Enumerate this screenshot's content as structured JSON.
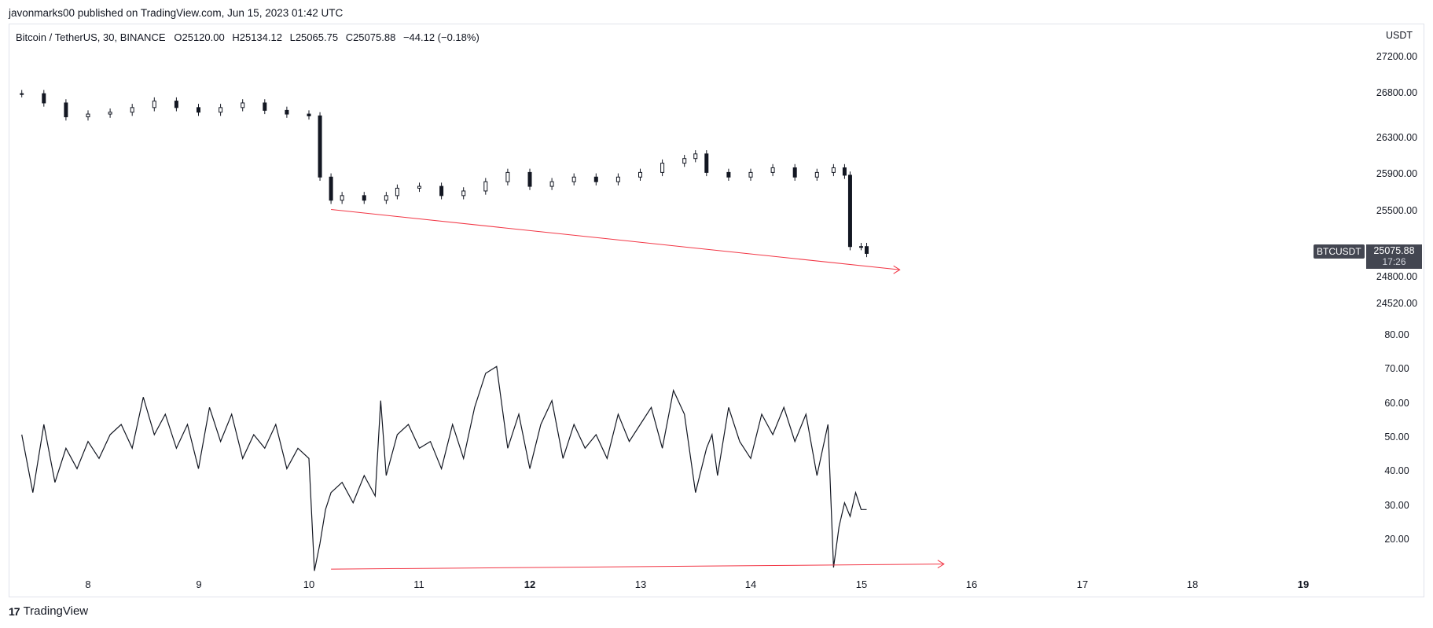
{
  "header": {
    "publisher": "javonmarks00 published on TradingView.com, Jun 15, 2023 01:42 UTC"
  },
  "legend": {
    "symbol": "Bitcoin / TetherUS, 30, BINANCE",
    "open_label": "O",
    "open": "25120.00",
    "high_label": "H",
    "high": "25134.12",
    "low_label": "L",
    "low": "25065.75",
    "close_label": "C",
    "close": "25075.88",
    "change": "−44.12 (−0.18%)"
  },
  "badges": {
    "symbol": "BTCUSDT",
    "price": "25075.88",
    "countdown": "17:26"
  },
  "footer": {
    "brand": "TradingView",
    "logo": "17"
  },
  "colors": {
    "candle": "#131722",
    "trendline": "#f23645",
    "badge": "#434651",
    "border": "#e0e3eb"
  },
  "chart_data": [
    {
      "type": "candlestick",
      "name": "price",
      "y_axis_title": "USDT",
      "y_ticks": [
        "27200.00",
        "26800.00",
        "26300.00",
        "25900.00",
        "25500.00",
        "24800.00",
        "24520.00"
      ],
      "ylim": [
        24520,
        27200
      ],
      "x_ticks": [
        "8",
        "9",
        "10",
        "11",
        "12",
        "13",
        "14",
        "15",
        "16",
        "17",
        "18",
        "19"
      ],
      "x_bold_ticks": [
        "12",
        "19"
      ],
      "x": [
        "7.40",
        "7.60",
        "7.80",
        "8.00",
        "8.20",
        "8.40",
        "8.60",
        "8.80",
        "9.00",
        "9.20",
        "9.40",
        "9.60",
        "9.80",
        "10.00",
        "10.10",
        "10.20",
        "10.30",
        "10.50",
        "10.70",
        "10.80",
        "11.00",
        "11.20",
        "11.40",
        "11.60",
        "11.80",
        "12.00",
        "12.20",
        "12.40",
        "12.60",
        "12.80",
        "13.00",
        "13.20",
        "13.40",
        "13.50",
        "13.60",
        "13.80",
        "14.00",
        "14.20",
        "14.40",
        "14.60",
        "14.75",
        "14.85",
        "14.90",
        "15.00",
        "15.05"
      ],
      "close": [
        26800,
        26700,
        26550,
        26580,
        26600,
        26650,
        26720,
        26650,
        26600,
        26650,
        26700,
        26620,
        26580,
        26560,
        25900,
        25650,
        25700,
        25650,
        25700,
        25780,
        25800,
        25700,
        25750,
        25850,
        25950,
        25800,
        25850,
        25900,
        25850,
        25900,
        25950,
        26050,
        26100,
        26150,
        25950,
        25900,
        25950,
        26000,
        25900,
        25950,
        26000,
        25920,
        25150,
        25150,
        25076
      ],
      "annotations": [
        {
          "type": "trendline",
          "from": [
            "10.20",
            25550
          ],
          "to": [
            "15.35",
            24900
          ]
        }
      ]
    },
    {
      "type": "line",
      "name": "oscillator",
      "y_ticks": [
        "80.00",
        "70.00",
        "60.00",
        "50.00",
        "40.00",
        "30.00",
        "20.00"
      ],
      "ylim": [
        10,
        85
      ],
      "x": [
        "7.40",
        "7.50",
        "7.60",
        "7.70",
        "7.80",
        "7.90",
        "8.00",
        "8.10",
        "8.20",
        "8.30",
        "8.40",
        "8.50",
        "8.60",
        "8.70",
        "8.80",
        "8.90",
        "9.00",
        "9.10",
        "9.20",
        "9.30",
        "9.40",
        "9.50",
        "9.60",
        "9.70",
        "9.80",
        "9.90",
        "10.00",
        "10.05",
        "10.10",
        "10.15",
        "10.20",
        "10.30",
        "10.40",
        "10.50",
        "10.60",
        "10.65",
        "10.70",
        "10.80",
        "10.90",
        "11.00",
        "11.10",
        "11.20",
        "11.30",
        "11.40",
        "11.50",
        "11.60",
        "11.70",
        "11.80",
        "11.90",
        "12.00",
        "12.10",
        "12.20",
        "12.30",
        "12.40",
        "12.50",
        "12.60",
        "12.70",
        "12.80",
        "12.90",
        "13.00",
        "13.10",
        "13.20",
        "13.30",
        "13.40",
        "13.50",
        "13.60",
        "13.65",
        "13.70",
        "13.80",
        "13.90",
        "14.00",
        "14.10",
        "14.20",
        "14.30",
        "14.40",
        "14.50",
        "14.60",
        "14.70",
        "14.75",
        "14.80",
        "14.85",
        "14.90",
        "14.95",
        "15.00",
        "15.05"
      ],
      "values": [
        52,
        35,
        55,
        38,
        48,
        42,
        50,
        45,
        52,
        55,
        48,
        63,
        52,
        58,
        48,
        55,
        42,
        60,
        50,
        58,
        45,
        52,
        48,
        55,
        42,
        48,
        45,
        12,
        20,
        30,
        35,
        38,
        32,
        40,
        34,
        62,
        40,
        52,
        55,
        48,
        50,
        42,
        55,
        45,
        60,
        70,
        72,
        48,
        58,
        42,
        55,
        62,
        45,
        55,
        48,
        52,
        45,
        58,
        50,
        55,
        60,
        48,
        65,
        58,
        35,
        48,
        52,
        40,
        60,
        50,
        45,
        58,
        52,
        60,
        50,
        58,
        40,
        55,
        13,
        25,
        32,
        28,
        35,
        30,
        30
      ],
      "annotations": [
        {
          "type": "trendline",
          "from": [
            "10.20",
            12.5
          ],
          "to": [
            "15.75",
            14
          ]
        }
      ]
    }
  ]
}
